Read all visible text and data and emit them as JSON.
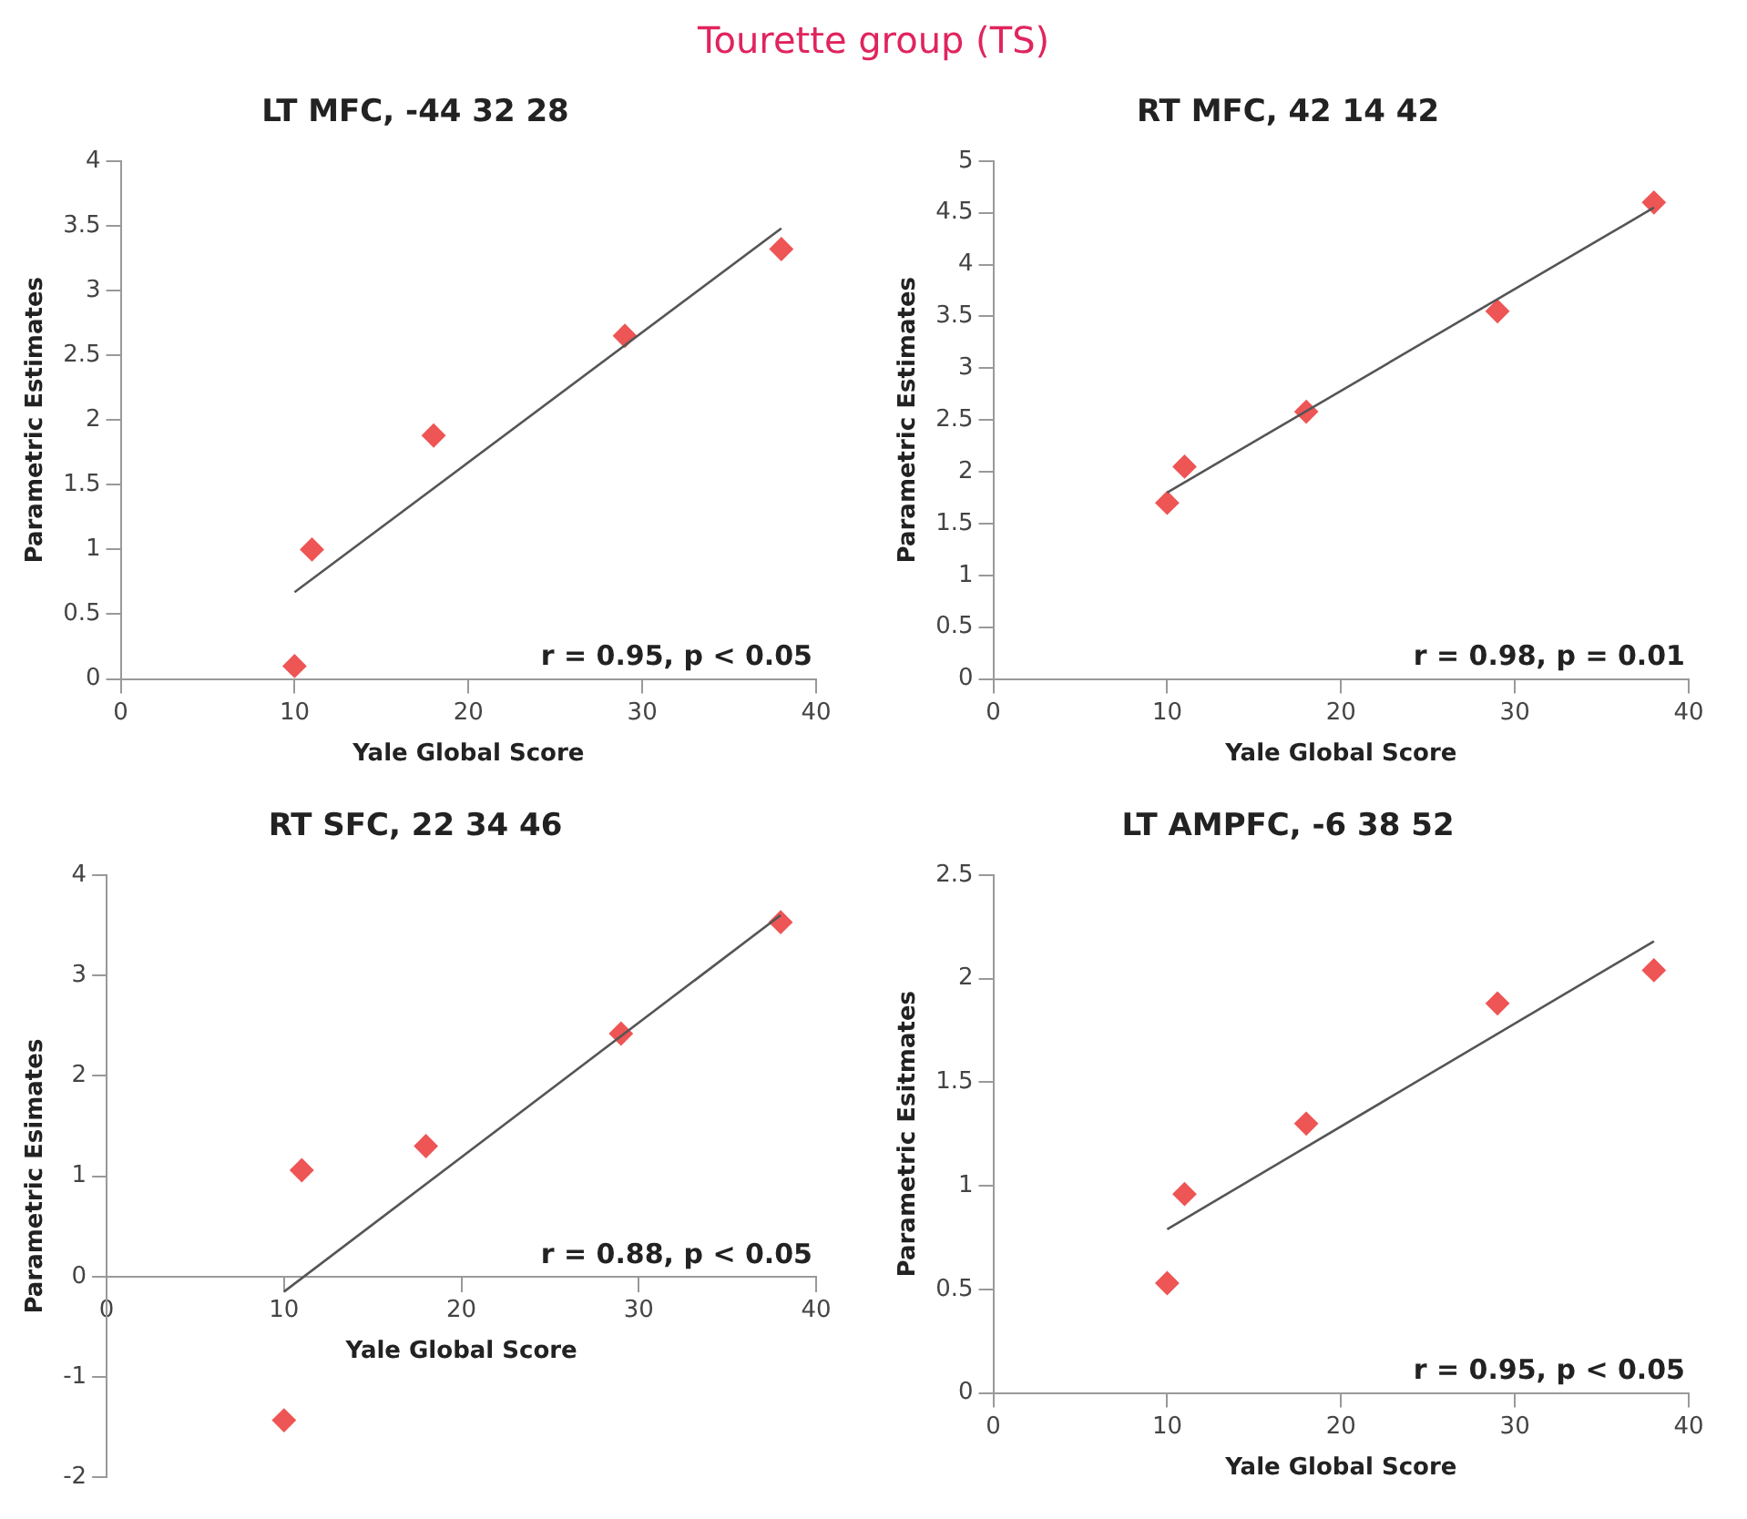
{
  "chart_data": [
    {
      "type": "other",
      "title": "Tourette group (TS)"
    },
    {
      "type": "scatter",
      "title": "LT MFC, -44 32 28",
      "xlabel": "Yale Global Score",
      "ylabel": "Parametric Estimates",
      "xlim": [
        0,
        40
      ],
      "xticks": [
        0,
        10,
        20,
        30,
        40
      ],
      "ylim": [
        0,
        4
      ],
      "yticks": [
        0,
        0.5,
        1,
        1.5,
        2,
        2.5,
        3,
        3.5,
        4
      ],
      "grid": false,
      "legend": false,
      "marker": "diamond",
      "annotations": [
        "r = 0.95, p < 0.05"
      ],
      "series": [
        {
          "color": "#ee5555",
          "x": [
            10,
            11,
            18,
            29,
            38
          ],
          "values": [
            0.1,
            1.0,
            1.88,
            2.65,
            3.32
          ]
        },
        {
          "type": "line",
          "color": "#555555",
          "marker": "none",
          "x": [
            10,
            38
          ],
          "values": [
            0.67,
            3.48
          ]
        }
      ]
    },
    {
      "type": "scatter",
      "title": "RT MFC, 42 14 42",
      "xlabel": "Yale Global Score",
      "ylabel": "Parametric Estimates",
      "xlim": [
        0,
        40
      ],
      "xticks": [
        0,
        10,
        20,
        30,
        40
      ],
      "ylim": [
        0,
        5
      ],
      "yticks": [
        0,
        0.5,
        1,
        1.5,
        2,
        2.5,
        3,
        3.5,
        4,
        4.5,
        5
      ],
      "grid": false,
      "legend": false,
      "marker": "diamond",
      "annotations": [
        "r = 0.98, p = 0.01"
      ],
      "series": [
        {
          "color": "#ee5555",
          "x": [
            10,
            11,
            18,
            29,
            38
          ],
          "values": [
            1.7,
            2.05,
            2.58,
            3.55,
            4.6
          ]
        },
        {
          "type": "line",
          "color": "#555555",
          "marker": "none",
          "x": [
            10,
            38
          ],
          "values": [
            1.8,
            4.55
          ]
        }
      ]
    },
    {
      "type": "scatter",
      "title": "RT SFC, 22 34 46",
      "xlabel": "Yale Global Score",
      "ylabel": "Parametric Esimates",
      "xlim": [
        0,
        40
      ],
      "xticks": [
        0,
        10,
        20,
        30,
        40
      ],
      "ylim": [
        -2,
        4
      ],
      "yticks": [
        -2,
        -1,
        0,
        1,
        2,
        3,
        4
      ],
      "grid": false,
      "legend": false,
      "marker": "diamond",
      "annotations": [
        "r = 0.88, p < 0.05"
      ],
      "series": [
        {
          "color": "#ee5555",
          "x": [
            10,
            11,
            18,
            29,
            38
          ],
          "values": [
            -1.43,
            1.06,
            1.3,
            2.42,
            3.53
          ]
        },
        {
          "type": "line",
          "color": "#555555",
          "marker": "none",
          "x": [
            10,
            38
          ],
          "values": [
            -0.15,
            3.6
          ]
        }
      ]
    },
    {
      "type": "scatter",
      "title": "LT AMPFC, -6 38 52",
      "xlabel": "Yale Global Score",
      "ylabel": "Parametric Esitmates",
      "xlim": [
        0,
        40
      ],
      "xticks": [
        0,
        10,
        20,
        30,
        40
      ],
      "ylim": [
        0,
        2.5
      ],
      "yticks": [
        0,
        0.5,
        1,
        1.5,
        2,
        2.5
      ],
      "grid": false,
      "legend": false,
      "marker": "diamond",
      "annotations": [
        "r = 0.95, p < 0.05"
      ],
      "series": [
        {
          "color": "#ee5555",
          "x": [
            10,
            11,
            18,
            29,
            38
          ],
          "values": [
            0.53,
            0.96,
            1.3,
            1.88,
            2.04
          ]
        },
        {
          "type": "line",
          "color": "#555555",
          "marker": "none",
          "x": [
            10,
            38
          ],
          "values": [
            0.79,
            2.18
          ]
        }
      ]
    }
  ]
}
